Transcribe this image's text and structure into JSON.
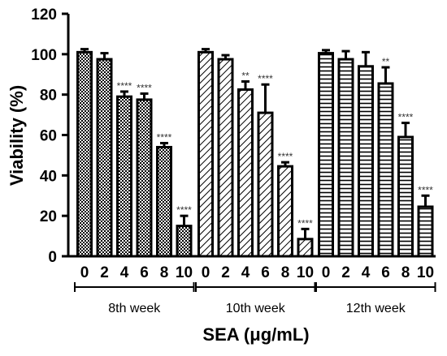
{
  "chart_data": {
    "type": "bar",
    "ylabel": "Viability (%)",
    "xlabel": "SEA (μg/mL)",
    "ylim": [
      0,
      120
    ],
    "yticks": [
      "0",
      "20",
      "40",
      "60",
      "80",
      "100",
      "120"
    ],
    "grid": false,
    "groups": [
      {
        "name": "8th week",
        "pattern": "checker",
        "categories": [
          "0",
          "2",
          "4",
          "6",
          "8",
          "10"
        ],
        "values": [
          101,
          97.5,
          79,
          77.5,
          54,
          15
        ],
        "errors": [
          1.5,
          3,
          2.5,
          3,
          2,
          5
        ],
        "significance": [
          "",
          "",
          "****",
          "****",
          "****",
          "****"
        ]
      },
      {
        "name": "10th week",
        "pattern": "diagonal",
        "categories": [
          "0",
          "2",
          "4",
          "6",
          "8",
          "10"
        ],
        "values": [
          101,
          97.5,
          82.5,
          71,
          44.5,
          8.5
        ],
        "errors": [
          1.5,
          2,
          4,
          14,
          2,
          5
        ],
        "significance": [
          "",
          "",
          "**",
          "****",
          "****",
          "****"
        ]
      },
      {
        "name": "12th week",
        "pattern": "horizontal",
        "categories": [
          "0",
          "2",
          "4",
          "6",
          "8",
          "10"
        ],
        "values": [
          100.5,
          97.5,
          94,
          85.5,
          59,
          24.5
        ],
        "errors": [
          1.5,
          4,
          7,
          8,
          7,
          5.5
        ],
        "significance": [
          "",
          "",
          "",
          "**",
          "****",
          "****"
        ]
      }
    ]
  }
}
